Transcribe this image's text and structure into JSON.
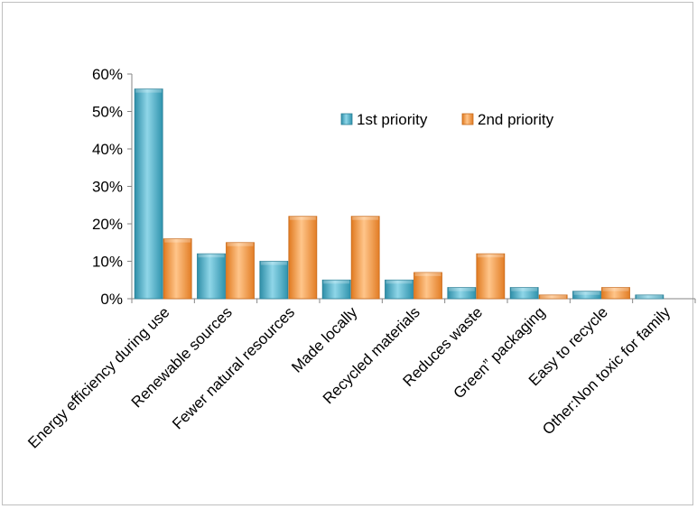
{
  "chart_data": {
    "type": "bar",
    "categories": [
      "Energy efficiency during use",
      "Renewable sources",
      "Fewer natural resources",
      "Made locally",
      "Recycled materials",
      "Reduces waste",
      "Green” packaging",
      "Easy to recycle",
      "Other:Non toxic for family"
    ],
    "series": [
      {
        "name": "1st priority",
        "color": "#4bacc6",
        "values": [
          0.56,
          0.12,
          0.1,
          0.05,
          0.05,
          0.03,
          0.03,
          0.02,
          0.01
        ]
      },
      {
        "name": "2nd priority",
        "color": "#f79646",
        "values": [
          0.16,
          0.15,
          0.22,
          0.22,
          0.07,
          0.12,
          0.01,
          0.03,
          0.0
        ]
      }
    ],
    "ylim": [
      0,
      0.6
    ],
    "yticks": [
      "0%",
      "10%",
      "20%",
      "30%",
      "40%",
      "50%",
      "60%"
    ],
    "legend_position": "top-right",
    "grid": false
  }
}
